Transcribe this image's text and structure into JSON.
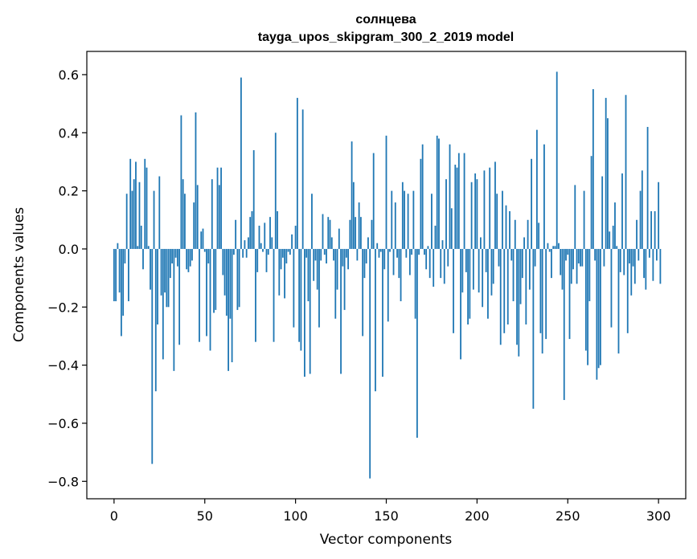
{
  "chart_data": {
    "type": "bar",
    "title": "солнцева",
    "subtitle": "tayga_upos_skipgram_300_2_2019 model",
    "xlabel": "Vector components",
    "ylabel": "Components values",
    "xlim": [
      -15,
      315
    ],
    "ylim": [
      -0.86,
      0.68
    ],
    "xticks": [
      0,
      50,
      100,
      150,
      200,
      250,
      300
    ],
    "xtick_labels": [
      "0",
      "50",
      "100",
      "150",
      "200",
      "250",
      "300"
    ],
    "yticks": [
      -0.8,
      -0.6,
      -0.4,
      -0.2,
      0.0,
      0.2,
      0.4,
      0.6
    ],
    "ytick_labels": [
      "−0.8",
      "−0.6",
      "−0.4",
      "−0.2",
      "0.0",
      "0.2",
      "0.4",
      "0.6"
    ],
    "bar_color": "#1f77b4",
    "grid": false,
    "values": [
      -0.18,
      -0.18,
      0.02,
      -0.15,
      -0.3,
      -0.23,
      -0.05,
      0.19,
      -0.18,
      0.31,
      0.2,
      0.24,
      0.3,
      0.01,
      0.23,
      0.08,
      -0.07,
      0.31,
      0.28,
      0.01,
      -0.14,
      -0.74,
      0.2,
      -0.49,
      -0.26,
      0.25,
      -0.16,
      -0.38,
      -0.15,
      -0.2,
      -0.2,
      -0.1,
      -0.05,
      -0.42,
      -0.03,
      -0.06,
      -0.33,
      0.46,
      0.24,
      0.19,
      -0.07,
      -0.08,
      -0.06,
      -0.04,
      0.16,
      0.47,
      0.22,
      -0.32,
      0.06,
      0.07,
      -0.01,
      -0.3,
      -0.05,
      -0.35,
      0.24,
      -0.22,
      -0.21,
      0.28,
      0.22,
      0.28,
      -0.09,
      -0.16,
      -0.23,
      -0.42,
      -0.24,
      -0.39,
      -0.02,
      0.1,
      -0.21,
      -0.2,
      0.59,
      -0.03,
      0.03,
      -0.03,
      0.04,
      0.11,
      0.13,
      0.34,
      -0.32,
      -0.08,
      0.08,
      0.02,
      -0.01,
      0.09,
      -0.08,
      -0.02,
      0.11,
      0.04,
      -0.32,
      0.4,
      0.13,
      -0.16,
      -0.07,
      -0.03,
      -0.17,
      -0.05,
      -0.01,
      -0.02,
      0.05,
      -0.27,
      0.08,
      0.52,
      -0.32,
      -0.35,
      0.48,
      -0.44,
      -0.03,
      -0.18,
      -0.43,
      0.19,
      -0.11,
      -0.04,
      -0.14,
      -0.27,
      -0.04,
      0.12,
      -0.02,
      -0.05,
      0.11,
      0.1,
      0.04,
      -0.04,
      -0.24,
      -0.14,
      0.07,
      -0.43,
      -0.06,
      -0.21,
      -0.03,
      -0.07,
      0.1,
      0.37,
      0.23,
      0.11,
      -0.04,
      0.16,
      0.11,
      -0.3,
      -0.1,
      -0.05,
      0.04,
      -0.79,
      0.1,
      0.33,
      -0.49,
      0.02,
      -0.03,
      -0.01,
      -0.44,
      -0.07,
      0.39,
      -0.25,
      -0.01,
      0.2,
      -0.09,
      0.16,
      -0.03,
      -0.1,
      -0.18,
      0.23,
      0.2,
      -0.03,
      0.19,
      -0.09,
      -0.02,
      0.2,
      -0.24,
      -0.65,
      -0.02,
      0.31,
      0.36,
      -0.02,
      -0.07,
      0.01,
      -0.1,
      0.19,
      -0.13,
      0.08,
      0.39,
      0.38,
      -0.1,
      0.03,
      -0.12,
      0.24,
      -0.06,
      0.36,
      0.14,
      -0.29,
      0.29,
      0.28,
      0.33,
      -0.38,
      -0.15,
      0.33,
      -0.08,
      -0.26,
      -0.24,
      0.23,
      -0.14,
      0.26,
      0.24,
      -0.15,
      0.04,
      -0.2,
      0.27,
      -0.08,
      -0.24,
      0.28,
      -0.16,
      -0.12,
      0.3,
      0.19,
      -0.06,
      -0.33,
      0.2,
      -0.29,
      0.15,
      -0.26,
      0.13,
      -0.04,
      -0.18,
      0.1,
      -0.33,
      -0.37,
      -0.19,
      -0.1,
      0.04,
      -0.26,
      0.1,
      -0.14,
      0.31,
      -0.55,
      -0.06,
      0.41,
      0.09,
      -0.29,
      -0.36,
      0.36,
      -0.31,
      0.02,
      -0.01,
      -0.1,
      0.01,
      0.01,
      0.61,
      0.02,
      -0.09,
      -0.14,
      -0.52,
      -0.04,
      -0.02,
      -0.31,
      -0.12,
      -0.07,
      0.22,
      -0.12,
      -0.05,
      -0.06,
      -0.06,
      0.2,
      -0.35,
      -0.4,
      -0.18,
      0.32,
      0.55,
      -0.04,
      -0.45,
      -0.41,
      -0.4,
      0.25,
      -0.06,
      0.52,
      0.45,
      0.06,
      -0.27,
      0.08,
      0.16,
      0.01,
      -0.36,
      -0.08,
      0.26,
      -0.09,
      0.53,
      -0.29,
      -0.05,
      -0.16,
      -0.06,
      -0.12,
      0.1,
      -0.04,
      0.2,
      0.27,
      -0.1,
      -0.14,
      0.42,
      -0.03,
      0.13,
      -0.11,
      0.13,
      -0.04,
      0.23,
      -0.12
    ]
  }
}
